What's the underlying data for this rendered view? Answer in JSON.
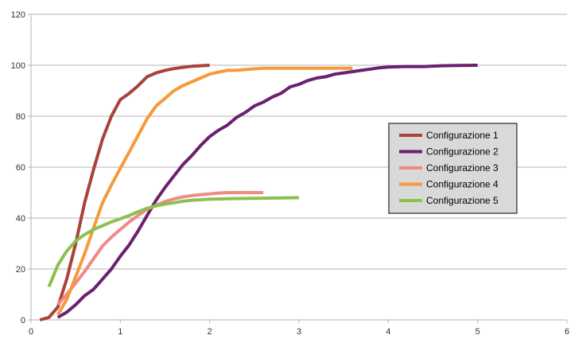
{
  "chart_data": {
    "type": "line",
    "title": "",
    "xlabel": "",
    "ylabel": "",
    "xlim": [
      0,
      6
    ],
    "ylim": [
      0,
      120
    ],
    "xticks": [
      "0",
      "1",
      "2",
      "3",
      "4",
      "5",
      "6"
    ],
    "yticks": [
      "0",
      "20",
      "40",
      "60",
      "80",
      "100",
      "120"
    ],
    "grid": "horizontal",
    "legend_position": "right",
    "series": [
      {
        "name": "Configurazione 1",
        "color": "#a8433c",
        "x": [
          0.1,
          0.2,
          0.3,
          0.4,
          0.5,
          0.6,
          0.7,
          0.8,
          0.9,
          1.0,
          1.1,
          1.2,
          1.3,
          1.4,
          1.5,
          1.6,
          1.7,
          1.8,
          1.9,
          2.0
        ],
        "y": [
          0,
          1,
          5,
          16,
          30,
          46,
          59,
          71,
          80,
          86.5,
          89,
          92,
          95.5,
          97,
          98,
          98.7,
          99.2,
          99.6,
          99.8,
          100
        ]
      },
      {
        "name": "Configurazione 2",
        "color": "#6b2070",
        "x": [
          0.3,
          0.4,
          0.5,
          0.6,
          0.7,
          0.8,
          0.9,
          1.0,
          1.1,
          1.2,
          1.3,
          1.4,
          1.5,
          1.6,
          1.7,
          1.8,
          1.9,
          2.0,
          2.1,
          2.2,
          2.3,
          2.4,
          2.5,
          2.6,
          2.7,
          2.8,
          2.9,
          3.0,
          3.1,
          3.2,
          3.3,
          3.4,
          3.5,
          3.6,
          3.7,
          3.8,
          3.9,
          4.0,
          4.2,
          4.4,
          4.6,
          4.8,
          5.0
        ],
        "y": [
          1,
          3,
          6,
          9.5,
          12,
          16,
          20,
          25,
          29.5,
          35,
          41,
          47,
          52,
          56.5,
          61,
          64.5,
          68.5,
          72,
          74.5,
          76.5,
          79.5,
          81.5,
          84,
          85.5,
          87.5,
          89,
          91.5,
          92.5,
          94,
          95,
          95.5,
          96.5,
          97,
          97.5,
          98,
          98.5,
          99,
          99.3,
          99.5,
          99.5,
          99.8,
          99.9,
          100
        ]
      },
      {
        "name": "Configurazione 3",
        "color": "#f08a85",
        "x": [
          0.3,
          0.4,
          0.5,
          0.6,
          0.7,
          0.8,
          0.9,
          1.0,
          1.1,
          1.2,
          1.3,
          1.4,
          1.5,
          1.6,
          1.7,
          1.8,
          1.9,
          2.0,
          2.1,
          2.2,
          2.3,
          2.4,
          2.5,
          2.6
        ],
        "y": [
          6,
          10,
          14.5,
          19,
          24,
          29,
          32.5,
          35.5,
          38.5,
          41,
          43.5,
          45,
          46.5,
          47.5,
          48.3,
          48.8,
          49.2,
          49.5,
          49.8,
          50,
          50,
          50,
          50,
          50
        ]
      },
      {
        "name": "Configurazione 4",
        "color": "#f59a3c",
        "x": [
          0.3,
          0.4,
          0.5,
          0.6,
          0.7,
          0.8,
          0.9,
          1.0,
          1.1,
          1.2,
          1.3,
          1.4,
          1.5,
          1.6,
          1.7,
          1.8,
          1.9,
          2.0,
          2.1,
          2.2,
          2.3,
          2.4,
          2.5,
          2.6,
          2.8,
          3.0,
          3.2,
          3.4,
          3.6
        ],
        "y": [
          2,
          8,
          17,
          26,
          36,
          46,
          53,
          59.5,
          66,
          72.5,
          79,
          84,
          87,
          90,
          92,
          93.5,
          95,
          96.5,
          97.3,
          98,
          98,
          98.3,
          98.6,
          98.8,
          98.8,
          98.8,
          98.8,
          98.8,
          98.8
        ]
      },
      {
        "name": "Configurazione 5",
        "color": "#8cc04f",
        "x": [
          0.2,
          0.3,
          0.4,
          0.5,
          0.6,
          0.7,
          0.8,
          0.9,
          1.0,
          1.1,
          1.2,
          1.3,
          1.4,
          1.5,
          1.6,
          1.7,
          1.8,
          1.9,
          2.0,
          2.2,
          2.4,
          2.6,
          2.8,
          3.0
        ],
        "y": [
          13,
          21.5,
          27,
          31,
          33.5,
          35.5,
          37,
          38.5,
          39.7,
          41,
          42.5,
          43.8,
          44.8,
          45.5,
          46,
          46.6,
          47,
          47.2,
          47.4,
          47.6,
          47.7,
          47.8,
          47.9,
          48
        ]
      }
    ]
  }
}
